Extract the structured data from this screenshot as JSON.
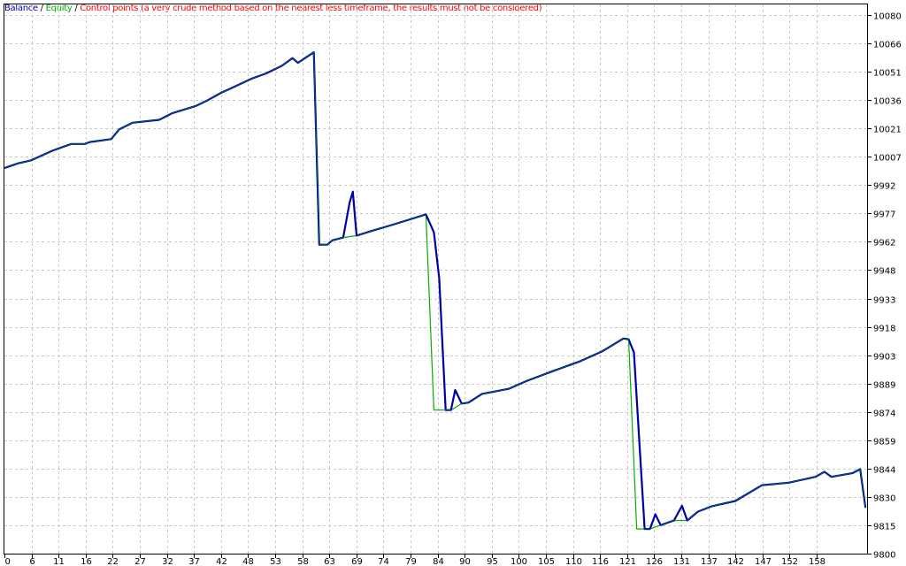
{
  "legend": {
    "balance": "Balance",
    "sep1": " / ",
    "equity": "Equity",
    "sep2": " / ",
    "control": "Control points (a very crude method based on the nearest less timeframe, the results must not be considered)"
  },
  "colors": {
    "balance": "#0000a8",
    "equity": "#00b000",
    "control": "#ff0000",
    "grid": "#c8c8c8"
  },
  "chart_data": {
    "type": "line",
    "grid": true,
    "legend_placement": "top-left",
    "ylim": [
      9800,
      10080
    ],
    "yticks": [
      "10080",
      "10066",
      "10051",
      "10036",
      "10021",
      "10007",
      "9992",
      "9977",
      "9962",
      "9948",
      "9933",
      "9918",
      "9903",
      "9889",
      "9874",
      "9859",
      "9844",
      "9830",
      "9815",
      "9800"
    ],
    "xticks": [
      "0",
      "6",
      "11",
      "16",
      "22",
      "27",
      "32",
      "37",
      "42",
      "48",
      "53",
      "58",
      "63",
      "69",
      "74",
      "79",
      "84",
      "90",
      "95",
      "100",
      "105",
      "110",
      "116",
      "121",
      "126",
      "131",
      "137",
      "142",
      "147",
      "152",
      "158"
    ],
    "xlim": [
      0,
      161.5
    ],
    "series": [
      {
        "name": "Balance",
        "points": [
          [
            0,
            10000
          ],
          [
            2.5,
            10002.4
          ],
          [
            5,
            10004
          ],
          [
            9,
            10009
          ],
          [
            12.5,
            10012.5
          ],
          [
            15,
            10012.5
          ],
          [
            16,
            10013.5
          ],
          [
            20,
            10015
          ],
          [
            21.5,
            10020
          ],
          [
            24,
            10023.5
          ],
          [
            29,
            10025
          ],
          [
            31.5,
            10028.5
          ],
          [
            35.7,
            10032
          ],
          [
            38,
            10035
          ],
          [
            40.6,
            10039
          ],
          [
            43,
            10042
          ],
          [
            46.4,
            10046.4
          ],
          [
            49,
            10049
          ],
          [
            52,
            10053
          ],
          [
            54,
            10057
          ],
          [
            55,
            10054.5
          ],
          [
            58,
            10060
          ],
          [
            59,
            9960.3
          ],
          [
            60.5,
            9960.3
          ],
          [
            61.5,
            9962.6
          ],
          [
            63.5,
            9964
          ],
          [
            64.7,
            9982
          ],
          [
            65.3,
            9987.8
          ],
          [
            66,
            9965
          ],
          [
            69,
            9967.6
          ],
          [
            72,
            9970
          ],
          [
            75.5,
            9973
          ],
          [
            79,
            9976
          ],
          [
            80.5,
            9966.7
          ],
          [
            81.5,
            9943
          ],
          [
            82.7,
            9874.6
          ],
          [
            83.7,
            9874.6
          ],
          [
            84.5,
            9885
          ],
          [
            85.7,
            9878
          ],
          [
            87,
            9878.5
          ],
          [
            89.5,
            9883
          ],
          [
            94.5,
            9885.6
          ],
          [
            98,
            9889.8
          ],
          [
            103,
            9895
          ],
          [
            108,
            9900
          ],
          [
            112,
            9905
          ],
          [
            116,
            9911.7
          ],
          [
            117,
            9911.3
          ],
          [
            118,
            9904.4
          ],
          [
            120,
            9813
          ],
          [
            121,
            9813
          ],
          [
            122,
            9820.6
          ],
          [
            123,
            9815
          ],
          [
            125.5,
            9817.4
          ],
          [
            127,
            9825
          ],
          [
            128,
            9817.4
          ],
          [
            130,
            9822
          ],
          [
            132.5,
            9824.7
          ],
          [
            137,
            9827.5
          ],
          [
            142,
            9835.7
          ],
          [
            147,
            9837
          ],
          [
            152,
            9840
          ],
          [
            153.7,
            9842.6
          ],
          [
            155,
            9840
          ],
          [
            159,
            9842
          ],
          [
            160.4,
            9844
          ],
          [
            161.4,
            9824
          ]
        ]
      },
      {
        "name": "Equity",
        "points": [
          [
            0,
            10000
          ],
          [
            2.5,
            10002.4
          ],
          [
            5,
            10004
          ],
          [
            9,
            10009
          ],
          [
            12.5,
            10012.5
          ],
          [
            15,
            10012.5
          ],
          [
            16,
            10013.5
          ],
          [
            20,
            10015
          ],
          [
            21.5,
            10020
          ],
          [
            24,
            10023.5
          ],
          [
            29,
            10025
          ],
          [
            31.5,
            10028.5
          ],
          [
            35.7,
            10032
          ],
          [
            38,
            10035
          ],
          [
            40.6,
            10039
          ],
          [
            43,
            10042
          ],
          [
            46.4,
            10046.4
          ],
          [
            49,
            10049
          ],
          [
            52,
            10053
          ],
          [
            54,
            10057
          ],
          [
            55,
            10054.5
          ],
          [
            58,
            10060
          ],
          [
            59,
            9960.3
          ],
          [
            60.5,
            9960.3
          ],
          [
            61.5,
            9962.6
          ],
          [
            63.5,
            9964
          ],
          [
            66,
            9965
          ],
          [
            69,
            9967.6
          ],
          [
            72,
            9970
          ],
          [
            75.5,
            9973
          ],
          [
            79,
            9976
          ],
          [
            80.5,
            9874.6
          ],
          [
            83.7,
            9874.6
          ],
          [
            85.7,
            9878
          ],
          [
            87,
            9878.5
          ],
          [
            89.5,
            9883
          ],
          [
            94.5,
            9885.6
          ],
          [
            98,
            9889.8
          ],
          [
            103,
            9895
          ],
          [
            108,
            9900
          ],
          [
            112,
            9905
          ],
          [
            116,
            9911.7
          ],
          [
            117,
            9911.3
          ],
          [
            118.5,
            9813
          ],
          [
            121,
            9813
          ],
          [
            123,
            9815
          ],
          [
            125.5,
            9817.4
          ],
          [
            128,
            9817.4
          ],
          [
            130,
            9822
          ],
          [
            132.5,
            9824.7
          ],
          [
            137,
            9827.5
          ],
          [
            142,
            9835.7
          ],
          [
            147,
            9837
          ],
          [
            152,
            9840
          ],
          [
            153.7,
            9842.6
          ],
          [
            155,
            9840
          ],
          [
            159,
            9842
          ],
          [
            160.4,
            9844
          ],
          [
            161.4,
            9824
          ]
        ]
      }
    ]
  }
}
